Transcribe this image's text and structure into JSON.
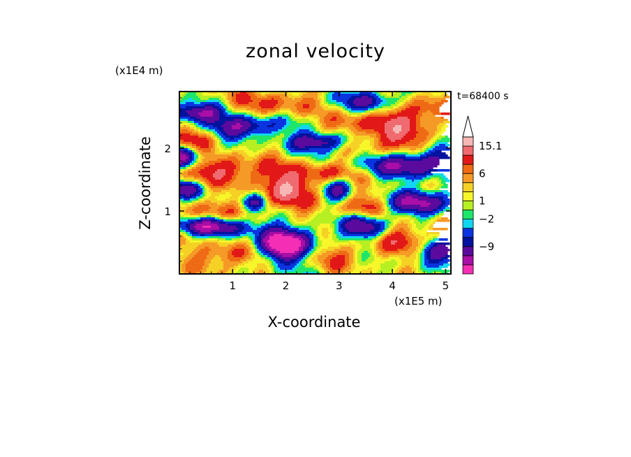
{
  "chart_data": {
    "type": "heatmap",
    "title": "zonal velocity",
    "xlabel": "X-coordinate",
    "ylabel": "Z-coordinate",
    "x_unit": "(x1E5 m)",
    "y_unit": "(x1E4 m)",
    "annotation": "t=68400 s",
    "xlim": [
      0,
      5.1
    ],
    "ylim": [
      0,
      2.9
    ],
    "x_ticks": [
      "1",
      "2",
      "3",
      "4",
      "5"
    ],
    "y_ticks": [
      "1",
      "2"
    ],
    "colorbar": {
      "levels": [
        {
          "color": "#f42fb6"
        },
        {
          "color": "#a90ea6"
        },
        {
          "color": "#5a0a9c"
        },
        {
          "color": "#00129e"
        },
        {
          "color": "#0a34e0"
        },
        {
          "color": "#11d6f2"
        },
        {
          "color": "#1ee66a"
        },
        {
          "color": "#b6ef22"
        },
        {
          "color": "#f6f62a"
        },
        {
          "color": "#f5d126"
        },
        {
          "color": "#f59a26"
        },
        {
          "color": "#ef6a14"
        },
        {
          "color": "#e21818"
        },
        {
          "color": "#ef6b70"
        },
        {
          "color": "#f6b7b5"
        }
      ],
      "labels": [
        "15.1",
        "6",
        "1",
        "−2",
        "−9"
      ]
    },
    "blobs": [
      {
        "x": 2.0,
        "z": 0.45,
        "sx": 0.45,
        "sz": 0.2,
        "a": -14
      },
      {
        "x": 1.9,
        "z": 0.45,
        "sx": 0.2,
        "sz": 0.12,
        "a": -6
      },
      {
        "x": 0.3,
        "z": 2.55,
        "sx": 0.35,
        "sz": 0.1,
        "a": -11
      },
      {
        "x": 1.2,
        "z": 2.35,
        "sx": 0.45,
        "sz": 0.12,
        "a": -11
      },
      {
        "x": 4.4,
        "z": 1.75,
        "sx": 0.6,
        "sz": 0.14,
        "a": -12
      },
      {
        "x": 4.55,
        "z": 1.15,
        "sx": 0.45,
        "sz": 0.13,
        "a": -11
      },
      {
        "x": 0.6,
        "z": 0.75,
        "sx": 0.5,
        "sz": 0.1,
        "a": -11
      },
      {
        "x": 3.5,
        "z": 0.75,
        "sx": 0.3,
        "sz": 0.14,
        "a": -10
      },
      {
        "x": 2.6,
        "z": 2.1,
        "sx": 0.4,
        "sz": 0.1,
        "a": -10
      },
      {
        "x": 3.0,
        "z": 1.3,
        "sx": 0.2,
        "sz": 0.18,
        "a": -8
      },
      {
        "x": 1.4,
        "z": 1.15,
        "sx": 0.16,
        "sz": 0.1,
        "a": -7
      },
      {
        "x": 0.05,
        "z": 1.85,
        "sx": 0.25,
        "sz": 0.12,
        "a": -12
      },
      {
        "x": 4.9,
        "z": 0.35,
        "sx": 0.3,
        "sz": 0.13,
        "a": -9
      },
      {
        "x": 3.6,
        "z": 2.75,
        "sx": 0.4,
        "sz": 0.12,
        "a": -8
      },
      {
        "x": 0.1,
        "z": 1.35,
        "sx": 0.25,
        "sz": 0.1,
        "a": -8
      },
      {
        "x": 2.0,
        "z": 1.35,
        "sx": 0.35,
        "sz": 0.22,
        "a": 9
      },
      {
        "x": 4.0,
        "z": 2.2,
        "sx": 0.4,
        "sz": 0.22,
        "a": 8
      },
      {
        "x": 0.8,
        "z": 1.65,
        "sx": 0.6,
        "sz": 0.15,
        "a": 7
      },
      {
        "x": 3.3,
        "z": 1.1,
        "sx": 0.4,
        "sz": 0.14,
        "a": 6
      },
      {
        "x": 2.8,
        "z": 1.6,
        "sx": 0.35,
        "sz": 0.12,
        "a": 6
      },
      {
        "x": 4.6,
        "z": 2.6,
        "sx": 0.45,
        "sz": 0.15,
        "a": 6
      },
      {
        "x": 0.3,
        "z": 2.15,
        "sx": 0.3,
        "sz": 0.12,
        "a": 6
      },
      {
        "x": 1.0,
        "z": 0.3,
        "sx": 0.5,
        "sz": 0.15,
        "a": 6
      },
      {
        "x": 2.8,
        "z": 0.3,
        "sx": 0.45,
        "sz": 0.15,
        "a": 5
      },
      {
        "x": 1.7,
        "z": 2.7,
        "sx": 0.5,
        "sz": 0.15,
        "a": 5
      },
      {
        "x": 4.2,
        "z": 0.55,
        "sx": 0.4,
        "sz": 0.15,
        "a": 6
      },
      {
        "x": 3.3,
        "z": 2.4,
        "sx": 0.4,
        "sz": 0.12,
        "a": 4
      },
      {
        "x": 0.5,
        "z": 1.0,
        "sx": 0.4,
        "sz": 0.12,
        "a": 4
      }
    ]
  }
}
